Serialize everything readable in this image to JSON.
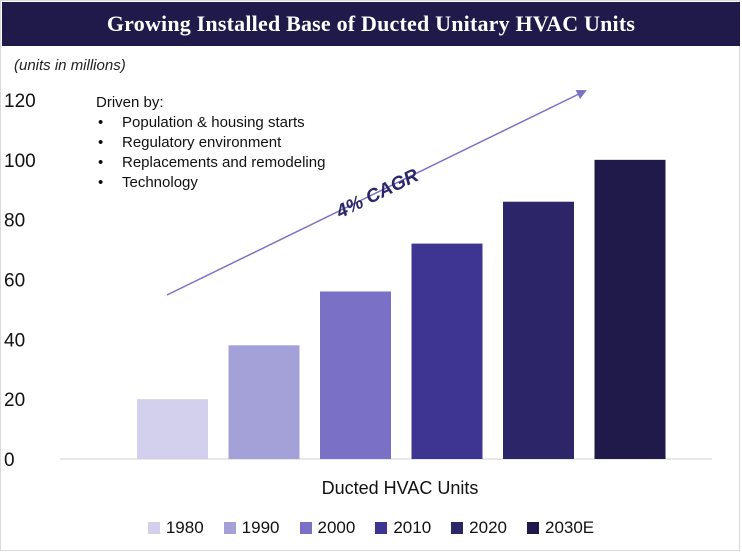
{
  "header": {
    "title": "Growing Installed Base of Ducted Unitary HVAC Units"
  },
  "units_note": "(units in millions)",
  "drivers": {
    "heading": "Driven by:",
    "items": [
      "Population & housing starts",
      "Regulatory environment",
      "Replacements and remodeling",
      "Technology"
    ]
  },
  "annotation": {
    "cagr_label": "4% CAGR"
  },
  "chart_data": {
    "type": "bar",
    "title": "Growing Installed Base of Ducted Unitary HVAC Units",
    "ylabel": "(units in millions)",
    "xlabel": "Ducted HVAC Units",
    "categories": [
      "Ducted HVAC Units"
    ],
    "series": [
      {
        "name": "1980",
        "values": [
          20
        ],
        "color": "#d2d0ec"
      },
      {
        "name": "1990",
        "values": [
          38
        ],
        "color": "#a4a0d8"
      },
      {
        "name": "2000",
        "values": [
          56
        ],
        "color": "#7a70c6"
      },
      {
        "name": "2010",
        "values": [
          72
        ],
        "color": "#3d3591"
      },
      {
        "name": "2020",
        "values": [
          86
        ],
        "color": "#2c2668"
      },
      {
        "name": "2030E",
        "values": [
          100
        ],
        "color": "#1f1a4a"
      }
    ],
    "ylim": [
      0,
      120
    ],
    "yticks": [
      0,
      20,
      40,
      60,
      80,
      100,
      120
    ],
    "grid": false,
    "legend": "bottom",
    "annotation_color": "#7a70c6"
  }
}
